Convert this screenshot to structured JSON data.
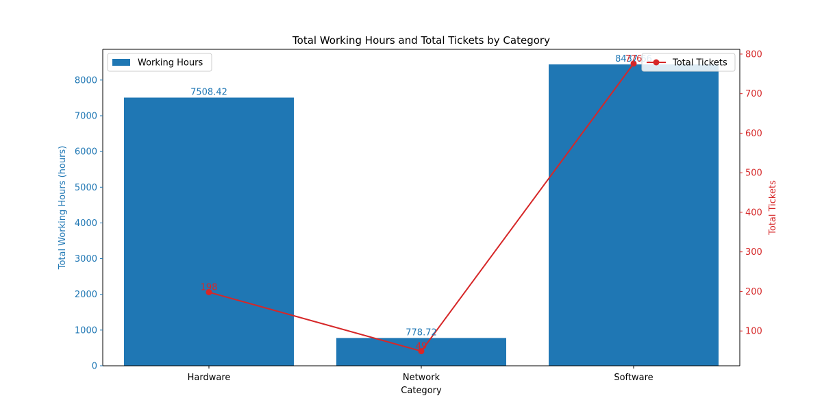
{
  "chart_data": {
    "type": "bar",
    "title": "Total Working Hours and Total Tickets by Category",
    "xlabel": "Category",
    "categories": [
      "Hardware",
      "Network",
      "Software"
    ],
    "left_axis": {
      "label": "Total Working Hours (hours)",
      "ylim": [
        0,
        8860
      ],
      "ticks": [
        0,
        1000,
        2000,
        3000,
        4000,
        5000,
        6000,
        7000,
        8000
      ],
      "color": "#1f77b4"
    },
    "right_axis": {
      "label": "Total Tickets",
      "ylim": [
        12,
        812
      ],
      "ticks": [
        100,
        200,
        300,
        400,
        500,
        600,
        700,
        800
      ],
      "color": "#d62728"
    },
    "series": [
      {
        "name": "Working Hours",
        "type": "bar",
        "axis": "left",
        "color": "#1f77b4",
        "values": [
          7508.42,
          778.72,
          8437.66
        ],
        "labels": [
          "7508.42",
          "778.72",
          "8437.66"
        ]
      },
      {
        "name": "Total Tickets",
        "type": "line",
        "axis": "right",
        "color": "#d62728",
        "marker": "circle",
        "values": [
          198,
          49,
          776
        ],
        "labels": [
          "198",
          "49",
          "776"
        ]
      }
    ],
    "legends": {
      "bars": "top-left",
      "line": "top-right"
    },
    "grid": false
  }
}
